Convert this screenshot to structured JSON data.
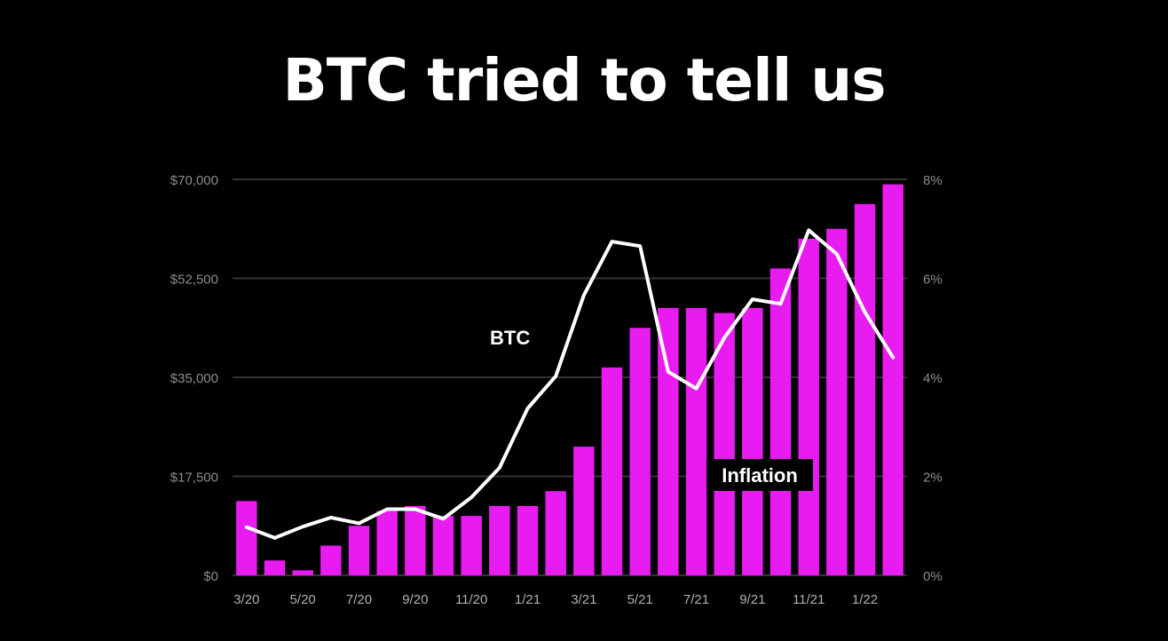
{
  "title": "BTC tried to tell us",
  "colors": {
    "background": "#000000",
    "inflation_bar": "#e81cf0",
    "btc_line": "#ffffff",
    "grid": "#333333",
    "tick_text": "#8c8c8c"
  },
  "chart_data": {
    "type": "bar",
    "title": "BTC tried to tell us",
    "categories": [
      "3/20",
      "4/20",
      "5/20",
      "6/20",
      "7/20",
      "8/20",
      "9/20",
      "10/20",
      "11/20",
      "12/20",
      "1/21",
      "2/21",
      "3/21",
      "4/21",
      "5/21",
      "6/21",
      "7/21",
      "8/21",
      "9/21",
      "10/21",
      "11/21",
      "12/21",
      "1/22",
      "2/22"
    ],
    "x_tick_labels": [
      "3/20",
      "5/20",
      "7/20",
      "9/20",
      "11/20",
      "1/21",
      "3/21",
      "5/21",
      "7/21",
      "9/21",
      "11/21",
      "1/22"
    ],
    "y_left": {
      "ticks": [
        "$0",
        "$17,500",
        "$35,000",
        "$52,500",
        "$70,000"
      ],
      "ylim": [
        0,
        70000
      ]
    },
    "y_right": {
      "ticks": [
        "0%",
        "2%",
        "4%",
        "6%",
        "8%"
      ],
      "ylim": [
        0,
        8
      ]
    },
    "grid": true,
    "series": [
      {
        "name": "Inflation",
        "type": "bar",
        "axis": "right",
        "values": [
          1.5,
          0.3,
          0.1,
          0.6,
          1.0,
          1.3,
          1.4,
          1.2,
          1.2,
          1.4,
          1.4,
          1.7,
          2.6,
          4.2,
          5.0,
          5.4,
          5.4,
          5.3,
          5.4,
          6.2,
          6.8,
          7.0,
          7.5,
          7.9
        ]
      },
      {
        "name": "BTC",
        "type": "line",
        "axis": "left",
        "values": [
          8500,
          6600,
          8600,
          10200,
          9200,
          11700,
          11700,
          10000,
          13800,
          19000,
          29500,
          35200,
          49500,
          59000,
          58200,
          36000,
          33000,
          42000,
          48800,
          48000,
          61000,
          56800,
          46500,
          38500
        ]
      }
    ],
    "annotations": [
      {
        "text": "BTC",
        "series": "BTC"
      },
      {
        "text": "Inflation",
        "series": "Inflation"
      }
    ]
  }
}
